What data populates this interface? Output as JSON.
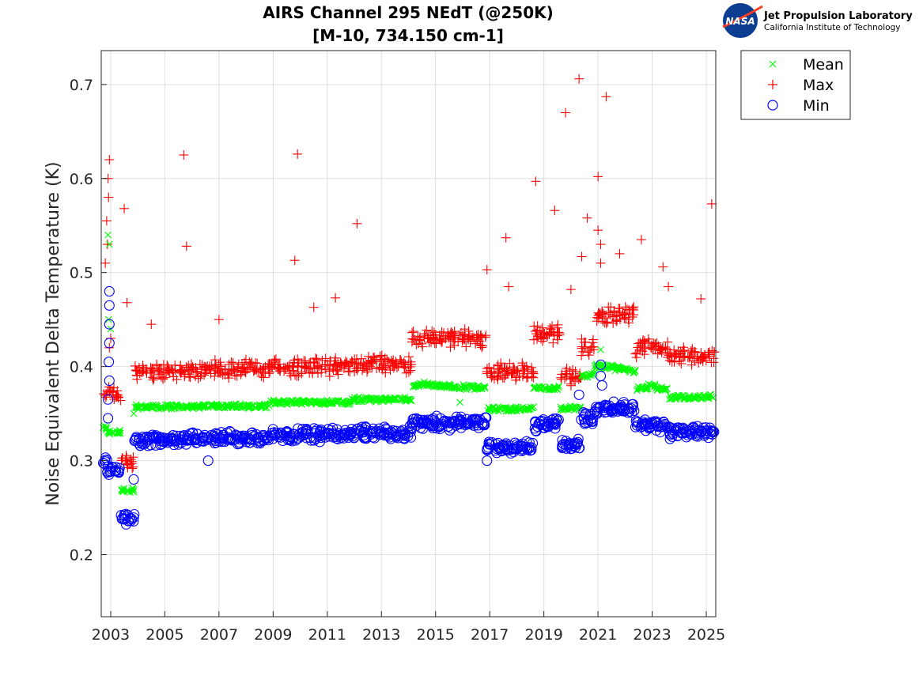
{
  "logo": {
    "org": "NASA",
    "line1": "Jet Propulsion Laboratory",
    "line2": "California Institute of Technology"
  },
  "chart_data": {
    "type": "scatter",
    "title": [
      "AIRS Channel 295 NEdT (@250K)",
      "[M-10, 734.150 cm-1]"
    ],
    "xlabel": "",
    "ylabel": "Noise Equivalent Delta Temperature (K)",
    "xlim": [
      2002.65,
      2025.35
    ],
    "ylim": [
      0.134,
      0.736
    ],
    "xticks": [
      2003,
      2005,
      2007,
      2009,
      2011,
      2013,
      2015,
      2017,
      2019,
      2021,
      2023,
      2025
    ],
    "xtick_labels": [
      "2003",
      "2005",
      "2007",
      "2009",
      "2011",
      "2013",
      "2015",
      "2017",
      "2019",
      "2021",
      "2023",
      "2025"
    ],
    "yticks": [
      0.2,
      0.3,
      0.4,
      0.5,
      0.6,
      0.7
    ],
    "ytick_labels": [
      "0.2",
      "0.3",
      "0.4",
      "0.5",
      "0.6",
      "0.7"
    ],
    "grid": true,
    "legend_position": "outside-top-right",
    "x_start": 2002.75,
    "x_step": 0.25,
    "series": [
      {
        "name": "Mean",
        "marker": "x",
        "color": "#00ff00",
        "values": [
          0.335,
          0.33,
          0.33,
          0.268,
          0.268,
          0.357,
          0.357,
          0.357,
          0.357,
          0.357,
          0.357,
          0.357,
          0.357,
          0.358,
          0.358,
          0.358,
          0.358,
          0.358,
          0.358,
          0.358,
          0.358,
          0.358,
          0.358,
          0.358,
          0.358,
          0.362,
          0.362,
          0.362,
          0.362,
          0.362,
          0.362,
          0.362,
          0.362,
          0.362,
          0.362,
          0.362,
          0.362,
          0.365,
          0.365,
          0.365,
          0.365,
          0.365,
          0.365,
          0.365,
          0.365,
          0.365,
          0.38,
          0.381,
          0.381,
          0.38,
          0.38,
          0.379,
          0.379,
          0.378,
          0.378,
          0.378,
          0.377,
          0.355,
          0.355,
          0.355,
          0.355,
          0.355,
          0.355,
          0.355,
          0.377,
          0.377,
          0.377,
          0.377,
          0.356,
          0.356,
          0.356,
          0.39,
          0.392,
          0.4,
          0.4,
          0.4,
          0.398,
          0.397,
          0.395,
          0.377,
          0.378,
          0.38,
          0.377,
          0.375,
          0.367,
          0.367,
          0.367,
          0.367,
          0.367,
          0.367,
          0.368
        ],
        "extra": [
          [
            2002.9,
            0.54
          ],
          [
            2002.95,
            0.53
          ],
          [
            2002.92,
            0.45
          ],
          [
            2003.0,
            0.44
          ],
          [
            2003.85,
            0.35
          ],
          [
            2021.1,
            0.418
          ],
          [
            2015.9,
            0.362
          ]
        ]
      },
      {
        "name": "Max",
        "marker": "+",
        "color": "#ff0000",
        "values": [
          0.37,
          0.375,
          0.37,
          0.3,
          0.295,
          0.395,
          0.395,
          0.395,
          0.395,
          0.395,
          0.395,
          0.395,
          0.395,
          0.397,
          0.397,
          0.397,
          0.397,
          0.397,
          0.397,
          0.397,
          0.397,
          0.397,
          0.397,
          0.397,
          0.397,
          0.4,
          0.4,
          0.4,
          0.4,
          0.4,
          0.4,
          0.4,
          0.4,
          0.4,
          0.4,
          0.4,
          0.4,
          0.403,
          0.403,
          0.403,
          0.403,
          0.403,
          0.403,
          0.403,
          0.403,
          0.403,
          0.43,
          0.43,
          0.43,
          0.43,
          0.43,
          0.43,
          0.43,
          0.43,
          0.43,
          0.43,
          0.43,
          0.395,
          0.395,
          0.395,
          0.395,
          0.395,
          0.395,
          0.395,
          0.435,
          0.435,
          0.435,
          0.435,
          0.39,
          0.39,
          0.39,
          0.42,
          0.42,
          0.455,
          0.455,
          0.455,
          0.455,
          0.455,
          0.455,
          0.42,
          0.42,
          0.42,
          0.42,
          0.42,
          0.41,
          0.41,
          0.41,
          0.41,
          0.41,
          0.41,
          0.41
        ],
        "extra": [
          [
            2002.85,
            0.555
          ],
          [
            2002.9,
            0.6
          ],
          [
            2002.95,
            0.62
          ],
          [
            2002.92,
            0.58
          ],
          [
            2002.88,
            0.53
          ],
          [
            2002.8,
            0.51
          ],
          [
            2002.95,
            0.42
          ],
          [
            2003.0,
            0.43
          ],
          [
            2003.5,
            0.568
          ],
          [
            2003.6,
            0.468
          ],
          [
            2005.7,
            0.625
          ],
          [
            2005.8,
            0.528
          ],
          [
            2009.8,
            0.513
          ],
          [
            2009.9,
            0.626
          ],
          [
            2012.1,
            0.552
          ],
          [
            2011.3,
            0.473
          ],
          [
            2016.9,
            0.503
          ],
          [
            2017.6,
            0.537
          ],
          [
            2018.7,
            0.597
          ],
          [
            2019.4,
            0.566
          ],
          [
            2019.8,
            0.67
          ],
          [
            2020.3,
            0.706
          ],
          [
            2020.6,
            0.558
          ],
          [
            2021.0,
            0.602
          ],
          [
            2021.3,
            0.687
          ],
          [
            2021.1,
            0.53
          ],
          [
            2021.1,
            0.51
          ],
          [
            2021.8,
            0.52
          ],
          [
            2022.6,
            0.535
          ],
          [
            2023.4,
            0.506
          ],
          [
            2023.6,
            0.485
          ],
          [
            2025.2,
            0.573
          ],
          [
            2024.8,
            0.472
          ],
          [
            2020.4,
            0.517
          ],
          [
            2020.0,
            0.482
          ],
          [
            2021.0,
            0.545
          ],
          [
            2004.5,
            0.445
          ],
          [
            2007.0,
            0.45
          ],
          [
            2010.5,
            0.463
          ],
          [
            2017.7,
            0.485
          ]
        ]
      },
      {
        "name": "Min",
        "marker": "o",
        "color": "#0000ff",
        "values": [
          0.3,
          0.29,
          0.29,
          0.238,
          0.238,
          0.322,
          0.322,
          0.322,
          0.322,
          0.322,
          0.322,
          0.322,
          0.322,
          0.324,
          0.324,
          0.324,
          0.324,
          0.324,
          0.324,
          0.324,
          0.324,
          0.324,
          0.324,
          0.324,
          0.324,
          0.327,
          0.327,
          0.327,
          0.327,
          0.327,
          0.327,
          0.327,
          0.327,
          0.327,
          0.327,
          0.327,
          0.327,
          0.33,
          0.33,
          0.33,
          0.33,
          0.33,
          0.33,
          0.33,
          0.33,
          0.33,
          0.34,
          0.34,
          0.34,
          0.34,
          0.34,
          0.34,
          0.34,
          0.34,
          0.34,
          0.34,
          0.34,
          0.315,
          0.315,
          0.315,
          0.315,
          0.315,
          0.315,
          0.315,
          0.338,
          0.338,
          0.338,
          0.338,
          0.318,
          0.318,
          0.318,
          0.345,
          0.345,
          0.355,
          0.355,
          0.355,
          0.355,
          0.355,
          0.355,
          0.338,
          0.338,
          0.338,
          0.338,
          0.338,
          0.33,
          0.33,
          0.33,
          0.33,
          0.33,
          0.33,
          0.33
        ],
        "extra": [
          [
            2002.95,
            0.48
          ],
          [
            2002.95,
            0.465
          ],
          [
            2002.95,
            0.445
          ],
          [
            2002.95,
            0.425
          ],
          [
            2002.93,
            0.405
          ],
          [
            2002.95,
            0.385
          ],
          [
            2002.9,
            0.365
          ],
          [
            2002.9,
            0.345
          ],
          [
            2021.1,
            0.402
          ],
          [
            2021.1,
            0.39
          ],
          [
            2021.15,
            0.38
          ],
          [
            2020.3,
            0.37
          ],
          [
            2003.85,
            0.28
          ],
          [
            2016.9,
            0.3
          ],
          [
            2006.6,
            0.3
          ]
        ]
      }
    ]
  }
}
